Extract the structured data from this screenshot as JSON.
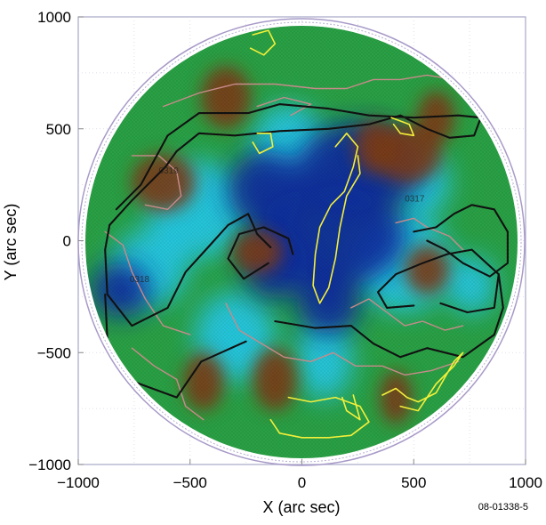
{
  "chart_data": {
    "type": "heatmap",
    "title": "",
    "xlabel": "X (arc sec)",
    "ylabel": "Y (arc sec)",
    "xlim": [
      -1000,
      1000
    ],
    "ylim": [
      -1000,
      1000
    ],
    "x_ticks": [
      -1000,
      -500,
      0,
      500,
      1000
    ],
    "y_ticks": [
      -1000,
      -500,
      0,
      500,
      1000
    ],
    "x_tick_labels": [
      "−1000",
      "−500",
      "0",
      "500",
      "1000"
    ],
    "y_tick_labels": [
      "−1000",
      "−500",
      "0",
      "500",
      "1000"
    ],
    "grid": true,
    "colors": {
      "map_low": "#0a2a9e",
      "map_mid_low": "#22c8e8",
      "map_mid": "#2aa045",
      "map_high": "#7a3a14",
      "contour_black": "#111111",
      "contour_yellow": "#f4ef3a",
      "contour_pink": "#c88a8a",
      "limb": "#a89ac8"
    },
    "active_regions": [
      {
        "label": "0319",
        "x": -640,
        "y": 300
      },
      {
        "label": "0318",
        "x": -770,
        "y": -185
      },
      {
        "label": "0317",
        "x": 460,
        "y": 175
      }
    ],
    "features": {
      "blue_low": [
        {
          "x": 260,
          "y": 330,
          "s": 200,
          "w": 1.4
        },
        {
          "x": 120,
          "y": 20,
          "s": 230,
          "w": 1.5
        },
        {
          "x": -160,
          "y": 230,
          "s": 170,
          "w": 1.0
        },
        {
          "x": -810,
          "y": -220,
          "s": 120,
          "w": 1.1
        },
        {
          "x": 120,
          "y": -280,
          "s": 140,
          "w": 1.0
        },
        {
          "x": -120,
          "y": -100,
          "s": 160,
          "w": 0.9
        }
      ],
      "cyan_mid": [
        {
          "x": -470,
          "y": 140,
          "s": 220,
          "w": 1.0
        },
        {
          "x": 450,
          "y": -100,
          "s": 220,
          "w": 1.0
        },
        {
          "x": -680,
          "y": -120,
          "s": 170,
          "w": 1.0
        },
        {
          "x": -300,
          "y": -430,
          "s": 200,
          "w": 0.9
        },
        {
          "x": 540,
          "y": 260,
          "s": 150,
          "w": 0.8
        },
        {
          "x": -60,
          "y": 430,
          "s": 180,
          "w": 0.9
        },
        {
          "x": 760,
          "y": -200,
          "s": 130,
          "w": 0.8
        },
        {
          "x": 100,
          "y": -530,
          "s": 180,
          "w": 0.7
        }
      ],
      "brown_high": [
        {
          "x": 470,
          "y": 390,
          "s": 130,
          "w": 1.2
        },
        {
          "x": -620,
          "y": 260,
          "s": 130,
          "w": 1.1
        },
        {
          "x": -200,
          "y": -50,
          "s": 95,
          "w": 1.2
        },
        {
          "x": 330,
          "y": 420,
          "s": 120,
          "w": 0.8
        },
        {
          "x": -340,
          "y": 640,
          "s": 140,
          "w": 0.8
        },
        {
          "x": 600,
          "y": 550,
          "s": 120,
          "w": 0.7
        },
        {
          "x": -120,
          "y": -620,
          "s": 140,
          "w": 0.7
        },
        {
          "x": 560,
          "y": -130,
          "s": 110,
          "w": 0.9
        },
        {
          "x": -440,
          "y": -630,
          "s": 130,
          "w": 0.7
        },
        {
          "x": 420,
          "y": -700,
          "s": 120,
          "w": 0.6
        }
      ]
    },
    "contours": {
      "black": [
        [
          [
            -830,
            140
          ],
          [
            -720,
            250
          ],
          [
            -600,
            470
          ],
          [
            -460,
            570
          ],
          [
            -240,
            570
          ],
          [
            -100,
            610
          ],
          [
            120,
            590
          ],
          [
            300,
            560
          ],
          [
            500,
            550
          ],
          [
            700,
            560
          ],
          [
            800,
            550
          ],
          [
            770,
            470
          ],
          [
            660,
            460
          ],
          [
            560,
            500
          ],
          [
            440,
            560
          ],
          [
            300,
            520
          ],
          [
            120,
            500
          ],
          [
            -100,
            490
          ],
          [
            -300,
            470
          ],
          [
            -460,
            480
          ],
          [
            -560,
            400
          ],
          [
            -610,
            330
          ],
          [
            -680,
            260
          ],
          [
            -760,
            180
          ],
          [
            -860,
            70
          ]
        ],
        [
          [
            -140,
            -30
          ],
          [
            -200,
            30
          ],
          [
            -240,
            120
          ],
          [
            -330,
            70
          ],
          [
            -420,
            -30
          ],
          [
            -520,
            -140
          ],
          [
            -600,
            -300
          ],
          [
            -760,
            -380
          ],
          [
            -870,
            -240
          ],
          [
            -880,
            -40
          ],
          [
            -860,
            70
          ]
        ],
        [
          [
            -250,
            -450
          ],
          [
            -450,
            -540
          ],
          [
            -560,
            -700
          ],
          [
            -780,
            -620
          ],
          [
            -870,
            -440
          ],
          [
            -880,
            -240
          ]
        ],
        [
          [
            -120,
            -360
          ],
          [
            60,
            -390
          ],
          [
            220,
            -380
          ],
          [
            320,
            -460
          ],
          [
            440,
            -520
          ],
          [
            560,
            -480
          ],
          [
            720,
            -520
          ],
          [
            860,
            -420
          ],
          [
            900,
            -300
          ],
          [
            880,
            -150
          ]
        ],
        [
          [
            -150,
            -100
          ],
          [
            -260,
            -170
          ],
          [
            -330,
            -80
          ],
          [
            -280,
            30
          ],
          [
            -170,
            60
          ],
          [
            -60,
            10
          ],
          [
            -40,
            -60
          ]
        ],
        [
          [
            500,
            -290
          ],
          [
            380,
            -300
          ],
          [
            340,
            -230
          ],
          [
            420,
            -150
          ],
          [
            540,
            -100
          ],
          [
            650,
            -60
          ],
          [
            760,
            -40
          ],
          [
            880,
            -150
          ],
          [
            860,
            -300
          ],
          [
            740,
            -320
          ],
          [
            620,
            -280
          ]
        ],
        [
          [
            500,
            40
          ],
          [
            600,
            60
          ],
          [
            680,
            120
          ],
          [
            760,
            160
          ],
          [
            860,
            140
          ],
          [
            920,
            40
          ],
          [
            920,
            -100
          ],
          [
            840,
            -160
          ],
          [
            720,
            -100
          ],
          [
            640,
            -40
          ],
          [
            560,
            0
          ]
        ]
      ],
      "yellow": [
        [
          [
            -220,
            920
          ],
          [
            -150,
            940
          ],
          [
            -120,
            880
          ],
          [
            -170,
            830
          ],
          [
            -230,
            860
          ]
        ],
        [
          [
            -200,
            480
          ],
          [
            -140,
            480
          ],
          [
            -130,
            420
          ],
          [
            -190,
            390
          ],
          [
            -220,
            440
          ]
        ],
        [
          [
            150,
            420
          ],
          [
            200,
            480
          ],
          [
            250,
            420
          ],
          [
            230,
            330
          ],
          [
            190,
            220
          ],
          [
            130,
            160
          ],
          [
            80,
            60
          ],
          [
            60,
            -60
          ],
          [
            50,
            -200
          ],
          [
            80,
            -280
          ],
          [
            120,
            -210
          ],
          [
            150,
            -80
          ],
          [
            170,
            60
          ],
          [
            200,
            200
          ],
          [
            260,
            300
          ],
          [
            250,
            380
          ]
        ],
        [
          [
            400,
            550
          ],
          [
            480,
            520
          ],
          [
            500,
            470
          ],
          [
            440,
            480
          ],
          [
            410,
            520
          ]
        ],
        [
          [
            -60,
            -700
          ],
          [
            40,
            -720
          ],
          [
            150,
            -700
          ],
          [
            260,
            -740
          ],
          [
            300,
            -810
          ],
          [
            220,
            -870
          ],
          [
            120,
            -880
          ],
          [
            0,
            -880
          ],
          [
            -100,
            -860
          ],
          [
            -140,
            -800
          ]
        ],
        [
          [
            360,
            -690
          ],
          [
            420,
            -660
          ],
          [
            470,
            -700
          ],
          [
            520,
            -720
          ],
          [
            600,
            -680
          ],
          [
            680,
            -540
          ],
          [
            720,
            -500
          ],
          [
            680,
            -560
          ],
          [
            600,
            -640
          ],
          [
            520,
            -760
          ],
          [
            440,
            -740
          ]
        ],
        [
          [
            180,
            -700
          ],
          [
            200,
            -760
          ],
          [
            260,
            -800
          ],
          [
            230,
            -690
          ]
        ]
      ],
      "pink": [
        [
          [
            -620,
            600
          ],
          [
            -460,
            660
          ],
          [
            -300,
            700
          ],
          [
            -120,
            700
          ],
          [
            60,
            680
          ],
          [
            200,
            680
          ],
          [
            320,
            720
          ],
          [
            440,
            720
          ],
          [
            560,
            740
          ],
          [
            680,
            720
          ]
        ],
        [
          [
            -760,
            380
          ],
          [
            -640,
            380
          ],
          [
            -560,
            310
          ],
          [
            -540,
            200
          ],
          [
            -600,
            140
          ],
          [
            -700,
            160
          ]
        ],
        [
          [
            -200,
            600
          ],
          [
            -80,
            640
          ],
          [
            40,
            610
          ],
          [
            -50,
            560
          ]
        ],
        [
          [
            -880,
            40
          ],
          [
            -800,
            -20
          ],
          [
            -760,
            -140
          ],
          [
            -700,
            -260
          ],
          [
            -620,
            -380
          ],
          [
            -500,
            -420
          ]
        ],
        [
          [
            -340,
            -280
          ],
          [
            -280,
            -400
          ],
          [
            -180,
            -460
          ],
          [
            -80,
            -520
          ],
          [
            40,
            -540
          ],
          [
            140,
            -500
          ],
          [
            240,
            -560
          ],
          [
            360,
            -560
          ],
          [
            460,
            -600
          ],
          [
            580,
            -580
          ],
          [
            700,
            -540
          ]
        ],
        [
          [
            220,
            -300
          ],
          [
            300,
            -260
          ],
          [
            380,
            -320
          ],
          [
            460,
            -380
          ],
          [
            540,
            -360
          ],
          [
            640,
            -400
          ],
          [
            720,
            -380
          ]
        ],
        [
          [
            -760,
            -480
          ],
          [
            -660,
            -560
          ],
          [
            -560,
            -620
          ],
          [
            -520,
            -740
          ],
          [
            -440,
            -800
          ]
        ],
        [
          [
            420,
            80
          ],
          [
            500,
            100
          ],
          [
            560,
            60
          ],
          [
            660,
            20
          ],
          [
            720,
            -40
          ]
        ]
      ]
    }
  },
  "figure_id": "08-01338-5"
}
